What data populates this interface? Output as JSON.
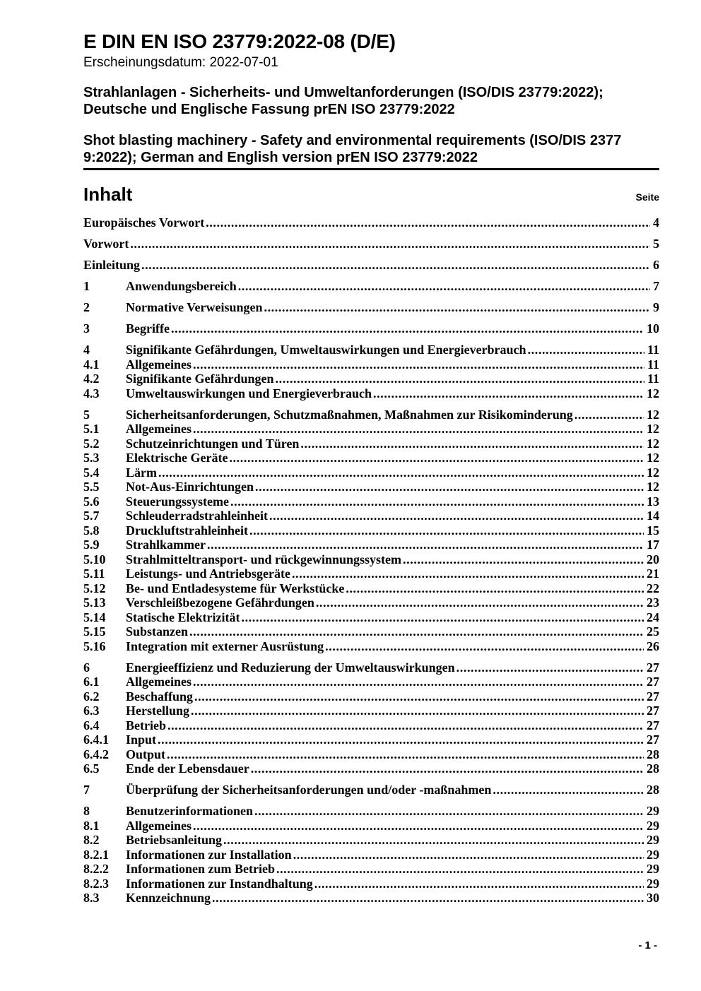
{
  "header": {
    "title": "E DIN EN ISO 23779:2022-08 (D/E)",
    "publication_date": "Erscheinungsdatum: 2022-07-01",
    "german_title": [
      "Strahlanlagen - Sicherheits- und Umweltanforderungen (ISO/DIS 23779:2022);",
      "Deutsche und Englische Fassung prEN ISO 23779:2022"
    ],
    "english_title": [
      "Shot blasting machinery - Safety and environmental requirements (ISO/DIS 2377",
      "9:2022); German and English version prEN ISO 23779:2022"
    ]
  },
  "toc": {
    "heading": "Inhalt",
    "page_label": "Seite",
    "entries": [
      {
        "num": "",
        "title": "Europäisches Vorwort",
        "page": "4",
        "group": true
      },
      {
        "num": "",
        "title": "Vorwort",
        "page": "5",
        "group": true
      },
      {
        "num": "",
        "title": "Einleitung",
        "page": "6",
        "group": true
      },
      {
        "num": "1",
        "title": "Anwendungsbereich",
        "page": "7",
        "group": true
      },
      {
        "num": "2",
        "title": "Normative Verweisungen",
        "page": "9",
        "group": true
      },
      {
        "num": "3",
        "title": "Begriffe",
        "page": "10",
        "group": true
      },
      {
        "num": "4",
        "title": "Signifikante Gefährdungen, Umweltauswirkungen und Energieverbrauch",
        "page": "11",
        "group": true
      },
      {
        "num": "4.1",
        "title": "Allgemeines",
        "page": "11",
        "group": false
      },
      {
        "num": "4.2",
        "title": "Signifikante Gefährdungen",
        "page": "11",
        "group": false
      },
      {
        "num": "4.3",
        "title": "Umweltauswirkungen und Energieverbrauch",
        "page": "12",
        "group": false
      },
      {
        "num": "5",
        "title": "Sicherheitsanforderungen, Schutzmaßnahmen, Maßnahmen zur Risikominderung",
        "page": "12",
        "group": true
      },
      {
        "num": "5.1",
        "title": "Allgemeines",
        "page": "12",
        "group": false
      },
      {
        "num": "5.2",
        "title": "Schutzeinrichtungen und Türen",
        "page": "12",
        "group": false
      },
      {
        "num": "5.3",
        "title": "Elektrische Geräte",
        "page": "12",
        "group": false
      },
      {
        "num": "5.4",
        "title": "Lärm",
        "page": "12",
        "group": false
      },
      {
        "num": "5.5",
        "title": "Not-Aus-Einrichtungen",
        "page": "12",
        "group": false
      },
      {
        "num": "5.6",
        "title": "Steuerungssysteme",
        "page": "13",
        "group": false
      },
      {
        "num": "5.7",
        "title": "Schleuderradstrahleinheit",
        "page": "14",
        "group": false
      },
      {
        "num": "5.8",
        "title": "Druckluftstrahleinheit",
        "page": "15",
        "group": false
      },
      {
        "num": "5.9",
        "title": "Strahlkammer",
        "page": "17",
        "group": false
      },
      {
        "num": "5.10",
        "title": "Strahlmitteltransport- und rückgewinnungssystem",
        "page": "20",
        "group": false
      },
      {
        "num": "5.11",
        "title": "Leistungs- und Antriebsgeräte",
        "page": "21",
        "group": false
      },
      {
        "num": "5.12",
        "title": "Be- und Entladesysteme für Werkstücke",
        "page": "22",
        "group": false
      },
      {
        "num": "5.13",
        "title": "Verschleißbezogene Gefährdungen",
        "page": "23",
        "group": false
      },
      {
        "num": "5.14",
        "title": "Statische Elektrizität",
        "page": "24",
        "group": false
      },
      {
        "num": "5.15",
        "title": "Substanzen",
        "page": "25",
        "group": false
      },
      {
        "num": "5.16",
        "title": "Integration mit externer Ausrüstung",
        "page": "26",
        "group": false
      },
      {
        "num": "6",
        "title": "Energieeffizienz und Reduzierung der Umweltauswirkungen",
        "page": "27",
        "group": true
      },
      {
        "num": "6.1",
        "title": "Allgemeines",
        "page": "27",
        "group": false
      },
      {
        "num": "6.2",
        "title": "Beschaffung",
        "page": "27",
        "group": false
      },
      {
        "num": "6.3",
        "title": "Herstellung",
        "page": "27",
        "group": false
      },
      {
        "num": "6.4",
        "title": "Betrieb",
        "page": "27",
        "group": false
      },
      {
        "num": "6.4.1",
        "title": "Input",
        "page": "27",
        "group": false
      },
      {
        "num": "6.4.2",
        "title": "Output",
        "page": "28",
        "group": false
      },
      {
        "num": "6.5",
        "title": "Ende der Lebensdauer",
        "page": "28",
        "group": false
      },
      {
        "num": "7",
        "title": "Überprüfung der Sicherheitsanforderungen und/oder -maßnahmen",
        "page": "28",
        "group": true
      },
      {
        "num": "8",
        "title": "Benutzerinformationen",
        "page": "29",
        "group": true
      },
      {
        "num": "8.1",
        "title": "Allgemeines",
        "page": "29",
        "group": false
      },
      {
        "num": "8.2",
        "title": "Betriebsanleitung",
        "page": "29",
        "group": false
      },
      {
        "num": "8.2.1",
        "title": "Informationen zur Installation",
        "page": "29",
        "group": false
      },
      {
        "num": "8.2.2",
        "title": "Informationen zum Betrieb",
        "page": "29",
        "group": false
      },
      {
        "num": "8.2.3",
        "title": "Informationen zur Instandhaltung",
        "page": "29",
        "group": false
      },
      {
        "num": "8.3",
        "title": "Kennzeichnung",
        "page": "30",
        "group": false
      }
    ]
  },
  "footer": {
    "page_number": "- 1 -"
  }
}
